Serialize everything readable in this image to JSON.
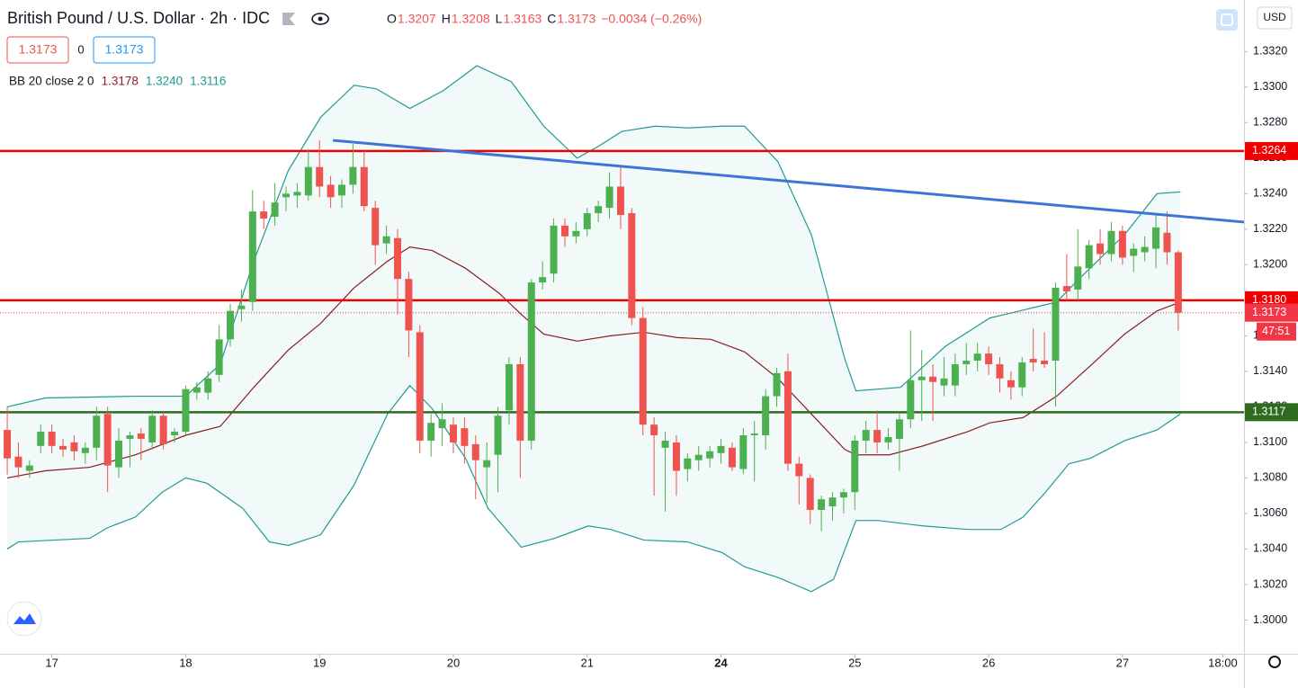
{
  "chart_data": {
    "type": "candlestick",
    "title": "British Pound / U.S. Dollar · 2h · IDC",
    "ohlc": [
      {
        "key": "O",
        "value": "1.3207"
      },
      {
        "key": "H",
        "value": "1.3208"
      },
      {
        "key": "L",
        "value": "1.3163"
      },
      {
        "key": "C",
        "value": "1.3173"
      }
    ],
    "change": "−0.0034 (−0.26%)",
    "quote": {
      "bid": "1.3173",
      "spread": "0",
      "ask": "1.3173"
    },
    "indicator": {
      "name": "BB 20 close 2 0",
      "basis": "1.3178",
      "upper": "1.3240",
      "lower": "1.3116"
    },
    "currency": "USD",
    "up_color": "#4caf50",
    "down_color": "#ef5350",
    "open": [
      1.3107,
      1.3092,
      1.3084,
      1.3098,
      1.3106,
      1.3098,
      1.31,
      1.3094,
      1.3097,
      1.3116,
      1.3086,
      1.3102,
      1.3105,
      1.31,
      1.3115,
      1.3104,
      1.3106,
      1.3128,
      1.3128,
      1.3138,
      1.3158,
      1.3175,
      1.3179,
      1.323,
      1.3227,
      1.3238,
      1.3239,
      1.3239,
      1.3255,
      1.3245,
      1.3239,
      1.3245,
      1.3255,
      1.3232,
      1.3212,
      1.3215,
      1.3192,
      1.3162,
      1.3101,
      1.3108,
      1.311,
      1.3108,
      1.3099,
      1.3086,
      1.3093,
      1.3118,
      1.3144,
      1.3101,
      1.319,
      1.3195,
      1.3222,
      1.3216,
      1.322,
      1.3229,
      1.3232,
      1.3244,
      1.3229,
      1.317,
      1.311,
      1.3097,
      1.31,
      1.3085,
      1.309,
      1.3091,
      1.3094,
      1.3097,
      1.3085,
      1.3104,
      1.3104,
      1.3126,
      1.314,
      1.3088,
      1.308,
      1.3062,
      1.3064,
      1.3069,
      1.3072,
      1.3101,
      1.3107,
      1.31,
      1.3102,
      1.3113,
      1.3135,
      1.3137,
      1.3132,
      1.3132,
      1.3144,
      1.3146,
      1.315,
      1.3144,
      1.3135,
      1.3131,
      1.3147,
      1.3146,
      1.3146,
      1.3188,
      1.3186,
      1.3198,
      1.3212,
      1.3206,
      1.3219,
      1.3205,
      1.3207,
      1.3209,
      1.3218,
      1.3207
    ],
    "high": [
      1.312,
      1.31,
      1.309,
      1.311,
      1.311,
      1.3102,
      1.3104,
      1.31,
      1.312,
      1.312,
      1.3108,
      1.3106,
      1.3108,
      1.3118,
      1.3117,
      1.3108,
      1.3132,
      1.3134,
      1.314,
      1.3166,
      1.3178,
      1.3186,
      1.3242,
      1.3236,
      1.3246,
      1.3244,
      1.3246,
      1.3265,
      1.327,
      1.325,
      1.3248,
      1.3268,
      1.3264,
      1.3236,
      1.3222,
      1.322,
      1.3196,
      1.3166,
      1.3116,
      1.3122,
      1.3114,
      1.3114,
      1.3104,
      1.31,
      1.312,
      1.3148,
      1.3148,
      1.3192,
      1.3202,
      1.3226,
      1.3226,
      1.3224,
      1.3232,
      1.3236,
      1.3252,
      1.3255,
      1.3232,
      1.3176,
      1.3114,
      1.3106,
      1.3104,
      1.3094,
      1.3098,
      1.3098,
      1.3102,
      1.31,
      1.3108,
      1.3112,
      1.313,
      1.3142,
      1.315,
      1.3092,
      1.3082,
      1.307,
      1.3072,
      1.3074,
      1.3104,
      1.3112,
      1.3118,
      1.3108,
      1.3116,
      1.3163,
      1.3152,
      1.3144,
      1.3148,
      1.315,
      1.3156,
      1.3156,
      1.3154,
      1.3148,
      1.314,
      1.3148,
      1.3164,
      1.3162,
      1.319,
      1.3206,
      1.322,
      1.3214,
      1.322,
      1.3224,
      1.3222,
      1.3212,
      1.3216,
      1.3228,
      1.323,
      1.3208
    ],
    "low": [
      1.3082,
      1.308,
      1.308,
      1.3094,
      1.3094,
      1.3092,
      1.309,
      1.3088,
      1.309,
      1.3072,
      1.308,
      1.3086,
      1.309,
      1.3096,
      1.3096,
      1.31,
      1.3104,
      1.3124,
      1.3124,
      1.3134,
      1.3154,
      1.3168,
      1.3174,
      1.322,
      1.3222,
      1.323,
      1.3232,
      1.3236,
      1.3238,
      1.3232,
      1.3232,
      1.324,
      1.323,
      1.32,
      1.3206,
      1.3172,
      1.3148,
      1.3094,
      1.3092,
      1.3098,
      1.3094,
      1.3088,
      1.3068,
      1.3066,
      1.3072,
      1.311,
      1.308,
      1.3096,
      1.3186,
      1.319,
      1.321,
      1.3212,
      1.3216,
      1.3224,
      1.3226,
      1.322,
      1.3166,
      1.3104,
      1.307,
      1.3061,
      1.307,
      1.3078,
      1.3084,
      1.3086,
      1.3088,
      1.3084,
      1.3082,
      1.3078,
      1.3096,
      1.312,
      1.3084,
      1.3065,
      1.3054,
      1.305,
      1.3056,
      1.306,
      1.3062,
      1.3094,
      1.3094,
      1.3096,
      1.3084,
      1.3108,
      1.3112,
      1.3112,
      1.3126,
      1.3126,
      1.3138,
      1.314,
      1.3138,
      1.3128,
      1.3124,
      1.3126,
      1.314,
      1.3142,
      1.312,
      1.318,
      1.318,
      1.3192,
      1.32,
      1.3202,
      1.32,
      1.3196,
      1.3202,
      1.3198,
      1.32,
      1.3163
    ],
    "close": [
      1.3091,
      1.3086,
      1.3087,
      1.3106,
      1.3098,
      1.3096,
      1.3095,
      1.3097,
      1.3115,
      1.3087,
      1.3101,
      1.3104,
      1.3102,
      1.3115,
      1.3099,
      1.3106,
      1.313,
      1.3131,
      1.3136,
      1.3158,
      1.3174,
      1.3177,
      1.323,
      1.3226,
      1.3235,
      1.324,
      1.3241,
      1.3255,
      1.3244,
      1.3238,
      1.3245,
      1.3255,
      1.3233,
      1.3211,
      1.3216,
      1.3192,
      1.3163,
      1.3101,
      1.3111,
      1.3113,
      1.31,
      1.3098,
      1.309,
      1.309,
      1.3115,
      1.3144,
      1.3101,
      1.319,
      1.3193,
      1.3222,
      1.3216,
      1.3219,
      1.3229,
      1.3233,
      1.3244,
      1.3228,
      1.317,
      1.311,
      1.3104,
      1.3101,
      1.3084,
      1.3091,
      1.3093,
      1.3095,
      1.3098,
      1.3086,
      1.3104,
      1.3105,
      1.3126,
      1.3139,
      1.3088,
      1.3081,
      1.3062,
      1.3068,
      1.3069,
      1.3072,
      1.3101,
      1.3107,
      1.31,
      1.3103,
      1.3113,
      1.3135,
      1.3137,
      1.3134,
      1.3136,
      1.3144,
      1.3146,
      1.315,
      1.3144,
      1.3136,
      1.3131,
      1.3145,
      1.3145,
      1.3144,
      1.3187,
      1.3185,
      1.3199,
      1.3211,
      1.3206,
      1.3219,
      1.3204,
      1.3209,
      1.321,
      1.3221,
      1.3207,
      1.3173
    ],
    "bands": [
      {
        "color": "#1f9a93",
        "width": 1.2,
        "x": [
          0,
          3.4,
          11.4,
          16,
          19.1,
          22.1,
          25.2,
          28.1,
          31.1,
          33.1,
          36.1,
          39.1,
          42.1,
          45.2,
          48.1,
          51.1,
          53.1,
          55.1,
          58.1,
          61.1,
          64.1,
          66.1,
          69.1,
          72.1,
          75.1,
          76.1,
          80.1,
          84.1,
          88.1,
          92.1,
          94.1,
          96.1,
          100.2,
          103.1,
          105.2
        ],
        "values": [
          1.312,
          1.3125,
          1.3126,
          1.3126,
          1.3144,
          1.3202,
          1.3253,
          1.3283,
          1.3301,
          1.3299,
          1.3288,
          1.3298,
          1.3312,
          1.3303,
          1.3278,
          1.326,
          1.3267,
          1.3275,
          1.3278,
          1.3277,
          1.3278,
          1.3278,
          1.3258,
          1.3217,
          1.3147,
          1.3129,
          1.3131,
          1.3154,
          1.317,
          1.3176,
          1.3179,
          1.3192,
          1.3217,
          1.324,
          1.3241
        ]
      },
      {
        "color": "#8b1e1e",
        "width": 1.2,
        "x": [
          0,
          3.4,
          7.4,
          11.5,
          16,
          19.1,
          22.1,
          25.2,
          28.1,
          31.1,
          34.1,
          36.1,
          38.1,
          41.1,
          44.1,
          46.1,
          48.1,
          51.1,
          54.1,
          57.1,
          60.1,
          63.1,
          66.1,
          69.1,
          72.1,
          75.1,
          76.1,
          79.1,
          82.1,
          86.1,
          88.1,
          91.1,
          94.1,
          97.1,
          100.2,
          103.1,
          105.2
        ],
        "values": [
          1.308,
          1.3084,
          1.3086,
          1.3093,
          1.3104,
          1.3109,
          1.3131,
          1.3152,
          1.3167,
          1.3187,
          1.3202,
          1.321,
          1.3208,
          1.3198,
          1.3184,
          1.3172,
          1.3161,
          1.3157,
          1.316,
          1.3162,
          1.3159,
          1.3158,
          1.3151,
          1.3136,
          1.3116,
          1.3096,
          1.3093,
          1.3093,
          1.3098,
          1.3106,
          1.3111,
          1.3114,
          1.3126,
          1.3143,
          1.3161,
          1.3174,
          1.3179
        ]
      },
      {
        "color": "#1f9a93",
        "width": 1.2,
        "x": [
          0,
          1,
          7.4,
          9,
          11.5,
          13.9,
          16,
          17.9,
          21.1,
          23.5,
          25.2,
          28.1,
          31.1,
          34.1,
          36.1,
          38.1,
          41.1,
          43.1,
          46.1,
          49.1,
          52.1,
          54.1,
          57.1,
          61,
          64.1,
          66.1,
          69.1,
          72.1,
          74.1,
          76.1,
          78.1,
          82.1,
          86.1,
          89.1,
          91.1,
          93.1,
          95.2,
          97.1,
          100.2,
          103.1,
          105.2
        ],
        "values": [
          1.304,
          1.3044,
          1.3046,
          1.3052,
          1.3058,
          1.3072,
          1.308,
          1.3077,
          1.3063,
          1.3044,
          1.3042,
          1.3048,
          1.3076,
          1.3116,
          1.3132,
          1.3119,
          1.3091,
          1.3063,
          1.3041,
          1.3046,
          1.3053,
          1.3051,
          1.3045,
          1.3044,
          1.3038,
          1.303,
          1.3024,
          1.3016,
          1.3023,
          1.3056,
          1.3056,
          1.3053,
          1.3051,
          1.3051,
          1.3058,
          1.3072,
          1.3088,
          1.3091,
          1.3101,
          1.3107,
          1.3116
        ]
      }
    ],
    "trendline": {
      "color": "#3d74d6",
      "x": [
        29.2,
        110.9
      ],
      "values": [
        1.327,
        1.3224
      ]
    },
    "levels": [
      {
        "value": 1.3264,
        "color": "#f00000"
      },
      {
        "value": 1.318,
        "label": "1.3180",
        "color": "#f00000"
      },
      {
        "value": 1.3117,
        "color": "#2e6b1f"
      }
    ],
    "last_price": {
      "value": 1.3173,
      "countdown": "47:51",
      "color": "#f23645"
    },
    "xlim": [
      -0.65,
      110.9
    ],
    "ylim": [
      1.2981,
      1.3349
    ],
    "xticks": [
      {
        "value": 4,
        "label": "17"
      },
      {
        "value": 16,
        "label": "18"
      },
      {
        "value": 28,
        "label": "19"
      },
      {
        "value": 40,
        "label": "20"
      },
      {
        "value": 52,
        "label": "21"
      },
      {
        "value": 64,
        "label": "24"
      },
      {
        "value": 76,
        "label": "25"
      },
      {
        "value": 88,
        "label": "26"
      },
      {
        "value": 100,
        "label": "27"
      },
      {
        "value": 109,
        "label": "18:00"
      }
    ],
    "yticks": [
      {
        "value": 1.3,
        "label": "1.3000"
      },
      {
        "value": 1.302,
        "label": "1.3020"
      },
      {
        "value": 1.304,
        "label": "1.3040"
      },
      {
        "value": 1.306,
        "label": "1.3060"
      },
      {
        "value": 1.308,
        "label": "1.3080"
      },
      {
        "value": 1.31,
        "label": "1.3100"
      },
      {
        "value": 1.312,
        "label": "1.3120"
      },
      {
        "value": 1.314,
        "label": "1.3140"
      },
      {
        "value": 1.316,
        "label": "1.3160"
      },
      {
        "value": 1.318,
        "label": "1.3180"
      },
      {
        "value": 1.32,
        "label": "1.3200"
      },
      {
        "value": 1.322,
        "label": "1.3220"
      },
      {
        "value": 1.324,
        "label": "1.3240"
      },
      {
        "value": 1.326,
        "label": "1.3260"
      },
      {
        "value": 1.328,
        "label": "1.3280"
      },
      {
        "value": 1.33,
        "label": "1.3300"
      },
      {
        "value": 1.332,
        "label": "1.3320"
      }
    ],
    "grid": false
  }
}
